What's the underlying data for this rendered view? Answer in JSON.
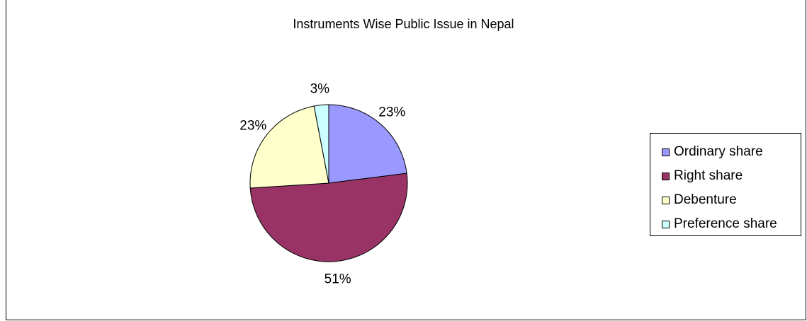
{
  "chart_data": {
    "type": "pie",
    "title": "Instruments Wise Public Issue in Nepal",
    "slices": [
      {
        "name": "Ordinary share",
        "value": 23,
        "label": "23%",
        "color": "#9999FF"
      },
      {
        "name": "Right share",
        "value": 51,
        "label": "51%",
        "color": "#993366"
      },
      {
        "name": "Debenture",
        "value": 23,
        "label": "23%",
        "color": "#FFFFCC"
      },
      {
        "name": "Preference share",
        "value": 3,
        "label": "3%",
        "color": "#CCFFFF"
      }
    ],
    "legend_position": "right",
    "start_angle_deg": 0,
    "direction": "clockwise"
  }
}
